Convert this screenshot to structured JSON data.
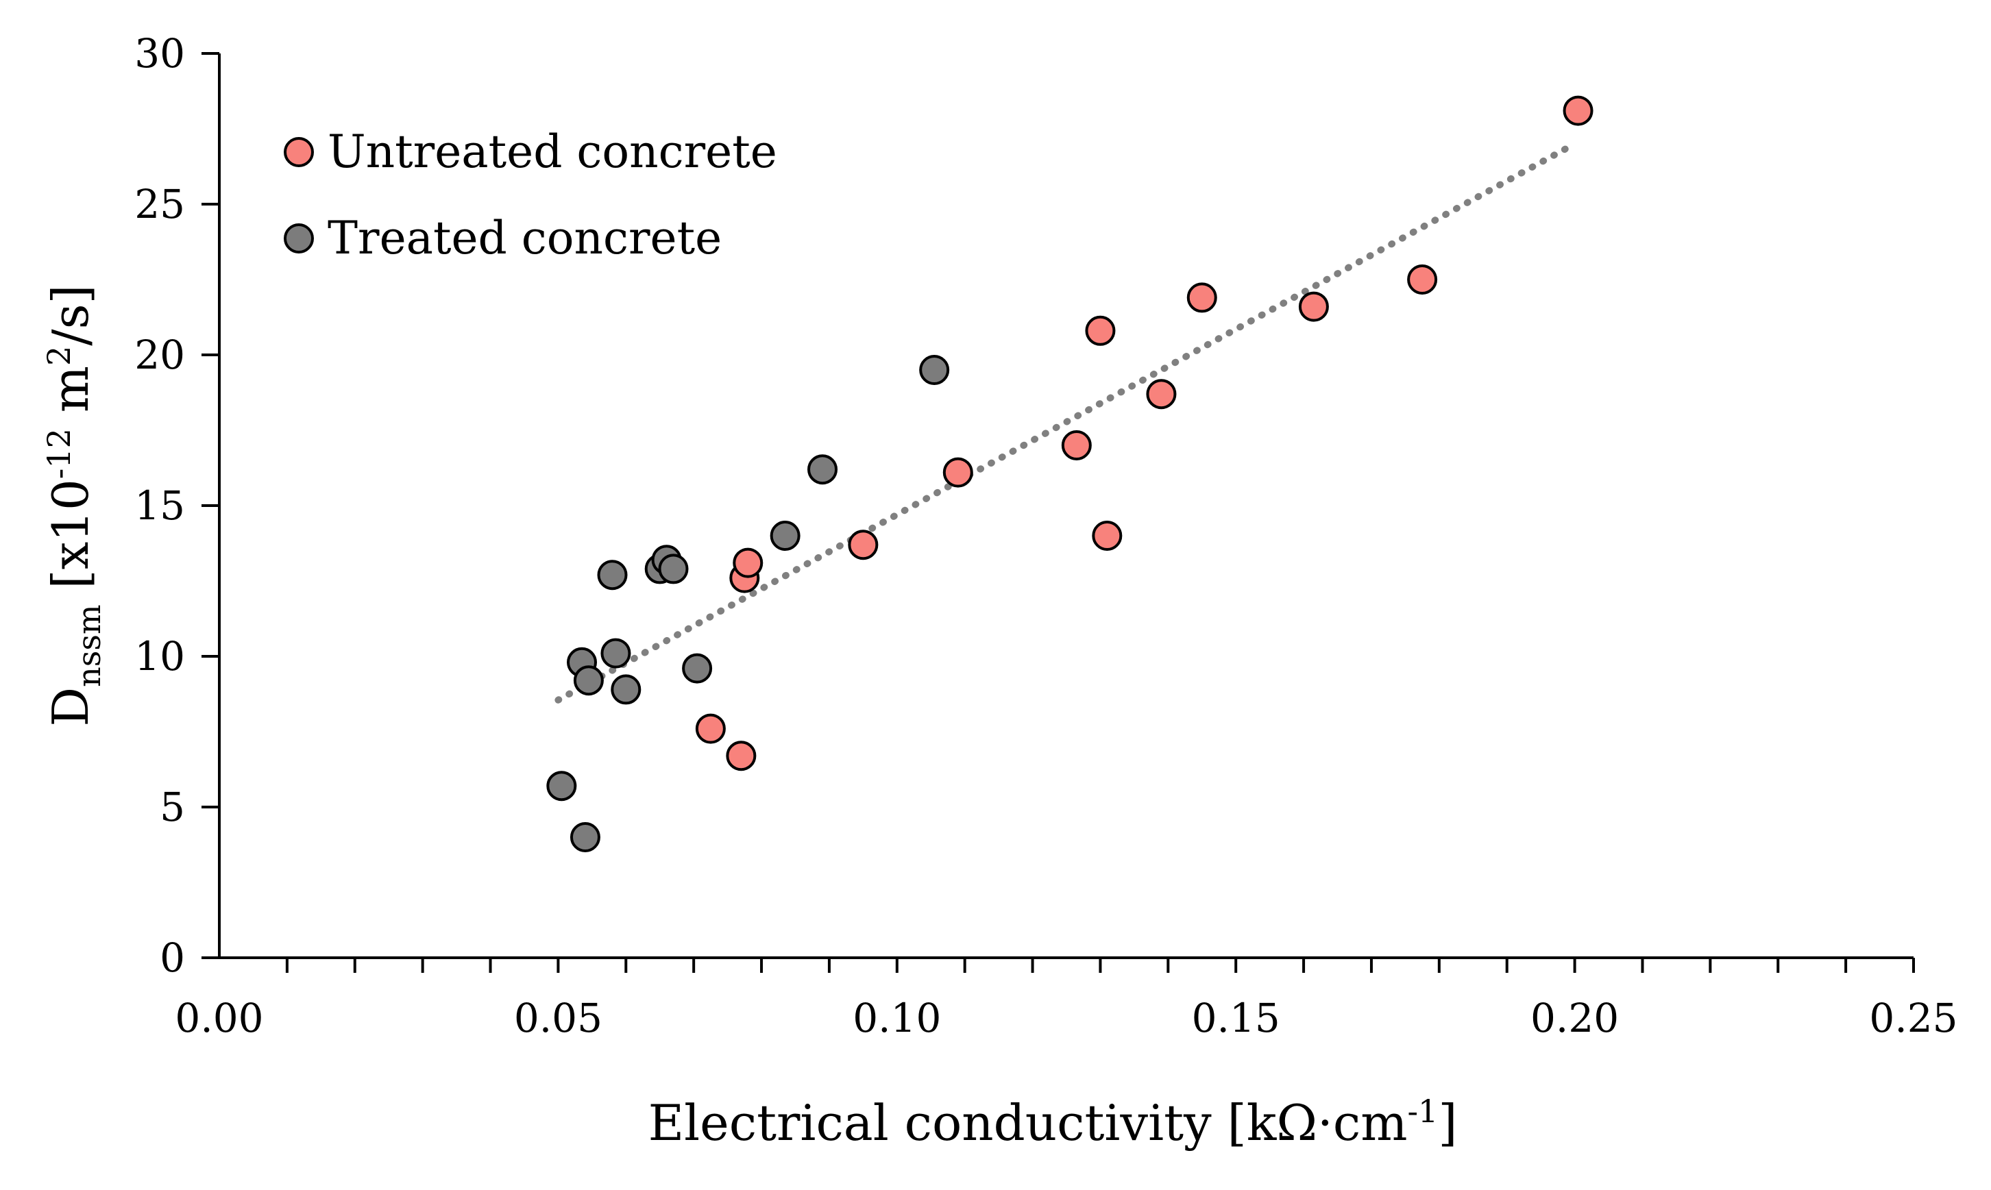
{
  "chart_data": {
    "type": "scatter",
    "title": "",
    "xlabel": "Electrical conductivity [kΩ·cm",
    "xlabel_sup": "-1",
    "xlabel_end": "]",
    "ylabel_main": "D",
    "ylabel_sub": "nssm",
    "ylabel_mid": " [x10",
    "ylabel_sup1": "-12",
    "ylabel_mid2": " m",
    "ylabel_sup2": "2",
    "ylabel_end": "/s]",
    "xlim": [
      0,
      0.25
    ],
    "ylim": [
      0,
      30
    ],
    "x_ticks": [
      0,
      0.05,
      0.1,
      0.15,
      0.2,
      0.25
    ],
    "x_tick_labels": [
      "0.00",
      "0.05",
      "0.10",
      "0.15",
      "0.20",
      "0.25"
    ],
    "x_minor_step": 0.01,
    "y_ticks": [
      0,
      5,
      10,
      15,
      20,
      25,
      30
    ],
    "y_tick_labels": [
      "0",
      "5",
      "10",
      "15",
      "20",
      "25",
      "30"
    ],
    "legend_position": "top-left",
    "series": [
      {
        "name": "Untreated concrete",
        "color": "#f8827c",
        "points": [
          [
            0.0725,
            7.6
          ],
          [
            0.077,
            6.7
          ],
          [
            0.0775,
            12.6
          ],
          [
            0.078,
            13.1
          ],
          [
            0.095,
            13.7
          ],
          [
            0.109,
            16.1
          ],
          [
            0.1265,
            17.0
          ],
          [
            0.13,
            20.8
          ],
          [
            0.131,
            14.0
          ],
          [
            0.139,
            18.7
          ],
          [
            0.145,
            21.9
          ],
          [
            0.1615,
            21.6
          ],
          [
            0.1775,
            22.5
          ],
          [
            0.2005,
            28.1
          ]
        ]
      },
      {
        "name": "Treated concrete",
        "color": "#7c7c7c",
        "points": [
          [
            0.0505,
            5.7
          ],
          [
            0.0535,
            9.8
          ],
          [
            0.054,
            4.0
          ],
          [
            0.0545,
            9.2
          ],
          [
            0.058,
            12.7
          ],
          [
            0.0585,
            10.1
          ],
          [
            0.06,
            8.9
          ],
          [
            0.065,
            12.9
          ],
          [
            0.066,
            13.2
          ],
          [
            0.067,
            12.9
          ],
          [
            0.0705,
            9.6
          ],
          [
            0.0835,
            14.0
          ],
          [
            0.089,
            16.2
          ],
          [
            0.1055,
            19.5
          ]
        ]
      }
    ],
    "trendline": {
      "style": "dotted",
      "color": "#808080",
      "x_start": 0.05,
      "x_end": 0.2,
      "slope": 123.0,
      "intercept": 2.4
    }
  }
}
